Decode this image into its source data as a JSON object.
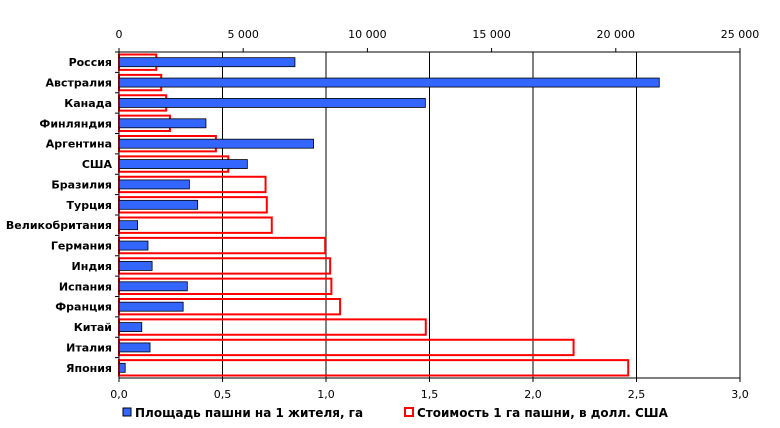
{
  "chart_data": {
    "type": "bar",
    "orientation": "horizontal",
    "categories": [
      "Россия",
      "Австралия",
      "Канада",
      "Финляндия",
      "Аргентина",
      "США",
      "Бразилия",
      "Турция",
      "Великобритания",
      "Германия",
      "Индия",
      "Испания",
      "Франция",
      "Китай",
      "Италия",
      "Япония"
    ],
    "series": [
      {
        "name": "Площадь пашни  на 1 жителя, га",
        "axis": "bottom",
        "color": "#3366ff",
        "style": "filled",
        "values": [
          0.85,
          2.61,
          1.48,
          0.42,
          0.94,
          0.62,
          0.34,
          0.38,
          0.09,
          0.14,
          0.16,
          0.33,
          0.31,
          0.11,
          0.15,
          0.03
        ]
      },
      {
        "name": "Стоимость 1 га пашни, в долл. США",
        "axis": "top",
        "color": "#ff0000",
        "style": "outline",
        "values": [
          1500,
          1700,
          1900,
          2050,
          3900,
          4400,
          5900,
          5950,
          6150,
          8300,
          8500,
          8550,
          8900,
          12350,
          18300,
          20500
        ]
      }
    ],
    "x_bottom": {
      "ticks": [
        "0,0",
        "0,5",
        "1,0",
        "1,5",
        "2,0",
        "2,5",
        "3,0"
      ],
      "range": [
        0,
        3
      ]
    },
    "x_top": {
      "ticks": [
        "0",
        "5 000",
        "10 000",
        "15 000",
        "20 000",
        "25 000"
      ],
      "range": [
        0,
        25000
      ]
    },
    "grid": true,
    "legend_position": "bottom"
  }
}
